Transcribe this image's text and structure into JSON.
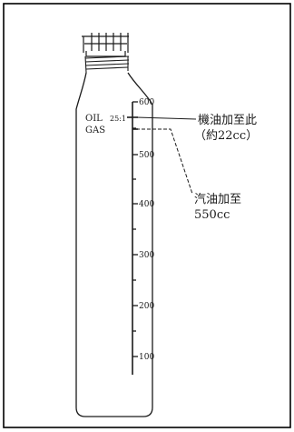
{
  "diagram": {
    "scale_labels": [
      "600",
      "500",
      "400",
      "300",
      "200",
      "100"
    ],
    "mark_labels": {
      "oil": "OIL",
      "ratio": "25:1",
      "gas": "GAS"
    },
    "callout_oil": {
      "line1": "機油加至此",
      "line2": "（約22cc）"
    },
    "callout_gas": {
      "line1": "汽油加至",
      "line2": "550cc"
    }
  },
  "colors": {
    "ink": "#1a1a1a",
    "border": "#000000",
    "background": "#ffffff"
  }
}
